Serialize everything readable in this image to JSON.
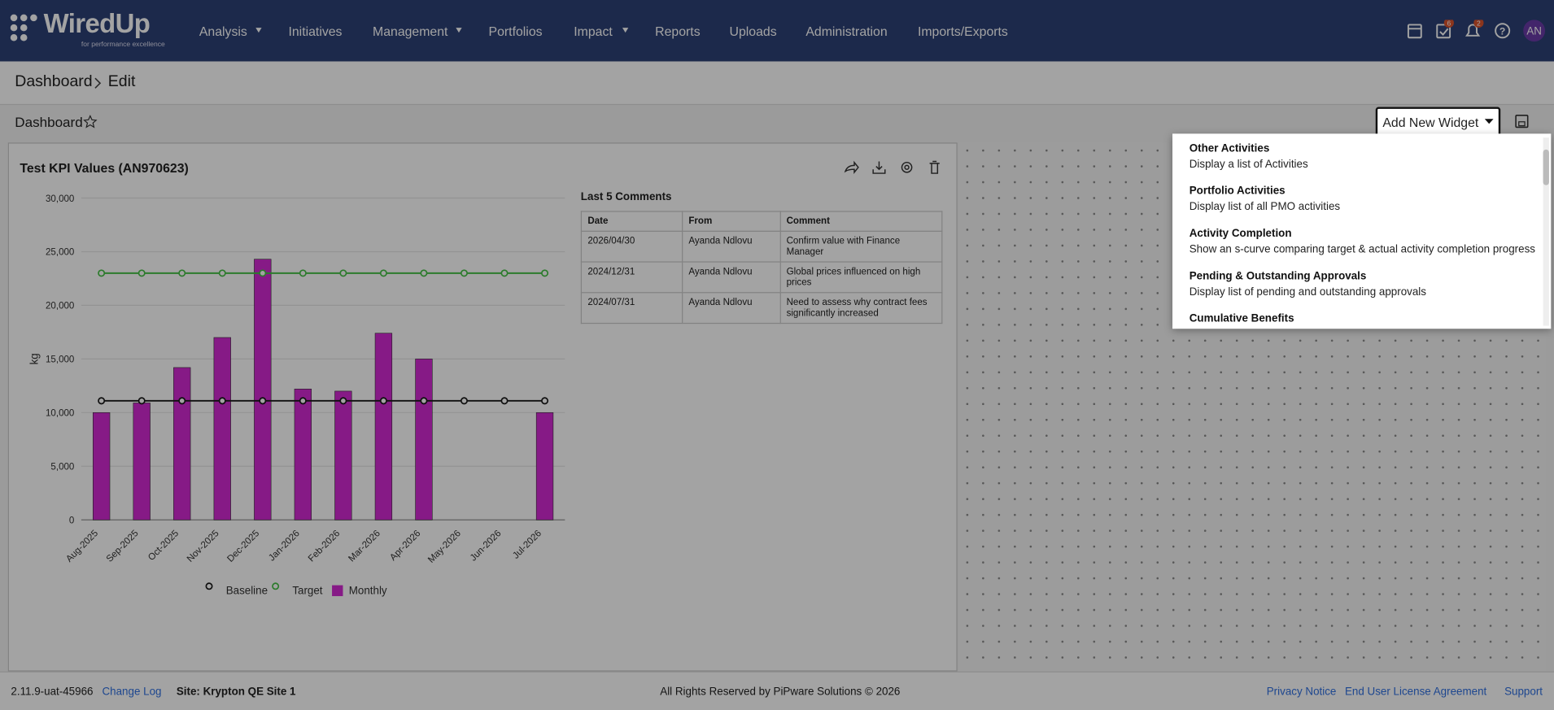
{
  "nav": {
    "logo": "WiredUp",
    "tagline": "for performance excellence",
    "menu": [
      "Analysis",
      "Initiatives",
      "Management",
      "Portfolios",
      "Impact",
      "Reports",
      "Uploads",
      "Administration",
      "Imports/Exports"
    ],
    "task_badge": "6",
    "notification_badge": "2",
    "avatar": "AN"
  },
  "breadcrumb": [
    "Dashboard",
    "Edit"
  ],
  "toolbar": {
    "title": "Dashboard",
    "add_widget": "Add New Widget"
  },
  "widget": {
    "title": "Test KPI Values (AN970623)"
  },
  "chart_data": {
    "type": "bar",
    "y_label": "kg",
    "categories": [
      "Aug-2025",
      "Sep-2025",
      "Oct-2025",
      "Nov-2025",
      "Dec-2025",
      "Jan-2026",
      "Feb-2026",
      "Mar-2026",
      "Apr-2026",
      "May-2026",
      "Jun-2026",
      "Jul-2026"
    ],
    "series": [
      {
        "name": "Baseline",
        "type": "line",
        "color": "#1a1a1a",
        "values": [
          11100,
          11100,
          11100,
          11100,
          11100,
          11100,
          11100,
          11100,
          11100,
          11100,
          11100,
          11100
        ]
      },
      {
        "name": "Target",
        "type": "line",
        "color": "#46c146",
        "values": [
          23000,
          23000,
          23000,
          23000,
          23000,
          23000,
          23000,
          23000,
          23000,
          23000,
          23000,
          23000
        ]
      },
      {
        "name": "Monthly",
        "type": "bar",
        "color": "#d22ad2",
        "values": [
          10000,
          10900,
          14200,
          17000,
          24300,
          12200,
          12000,
          17400,
          15000,
          null,
          null,
          10000
        ]
      }
    ],
    "ylim": [
      0,
      30000
    ],
    "yticks": [
      0,
      {
        "value": 5000,
        "label": "5,000"
      },
      {
        "value": 10000,
        "label": "10,000"
      },
      {
        "value": 15000,
        "label": "15,000"
      },
      {
        "value": 20000,
        "label": "20,000"
      },
      {
        "value": 25000,
        "label": "25,000"
      },
      {
        "value": 30000,
        "label": "30,000"
      }
    ],
    "grid": true,
    "legend": "bottom"
  },
  "comments": {
    "title": "Last 5 Comments",
    "headers": [
      "Date",
      "From",
      "Comment"
    ],
    "rows": [
      [
        "2026/04/30",
        "Ayanda Ndlovu",
        "Confirm value with Finance Manager"
      ],
      [
        "2024/12/31",
        "Ayanda Ndlovu",
        "Global prices influenced on high prices"
      ],
      [
        "2024/07/31",
        "Ayanda Ndlovu",
        "Need to assess why contract fees significantly increased"
      ]
    ]
  },
  "widget_menu": [
    {
      "title": "Other Activities",
      "description": "Display a list of Activities"
    },
    {
      "title": "Portfolio Activities",
      "description": "Display list of all PMO activities"
    },
    {
      "title": "Activity Completion",
      "description": "Show an s-curve comparing target & actual activity completion progress"
    },
    {
      "title": "Pending & Outstanding Approvals",
      "description": "Display list of pending and outstanding approvals"
    },
    {
      "title": "Cumulative Benefits"
    }
  ],
  "footer": {
    "version": "2.11.9-uat-45966",
    "change_log": "Change Log",
    "site": "Site: Krypton QE Site 1",
    "copyright": "All Rights Reserved by PiPware Solutions © 2026",
    "links": [
      "Privacy Notice",
      "End User License Agreement",
      "Support"
    ]
  }
}
